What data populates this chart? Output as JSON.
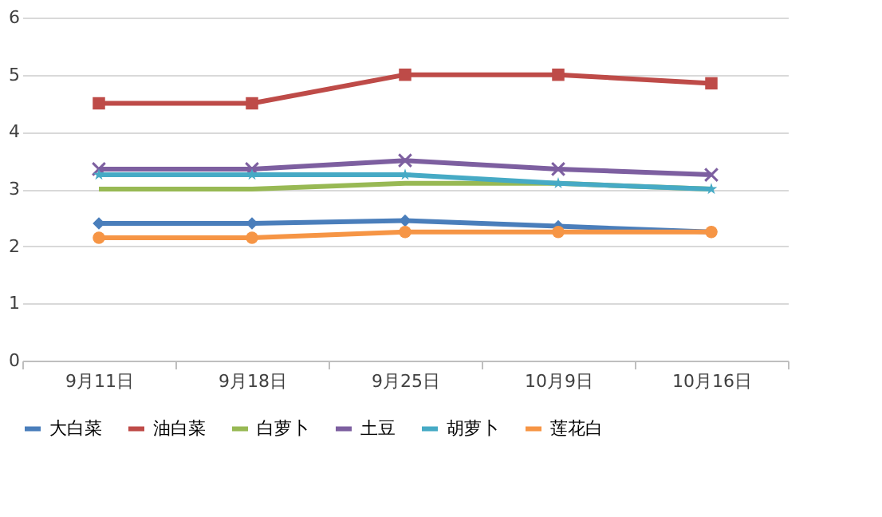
{
  "chart_data": {
    "type": "line",
    "categories": [
      "9月11日",
      "9月18日",
      "9月25日",
      "10月9日",
      "10月16日"
    ],
    "series": [
      {
        "name": "大白菜",
        "color": "#4a7ebb",
        "marker": "diamond",
        "values": [
          2.4,
          2.4,
          2.45,
          2.35,
          2.25
        ]
      },
      {
        "name": "油白菜",
        "color": "#be4b48",
        "marker": "square",
        "values": [
          4.5,
          4.5,
          5,
          5,
          4.85
        ]
      },
      {
        "name": "白萝卜",
        "color": "#98b954",
        "marker": "none",
        "values": [
          3,
          3,
          3.1,
          3.1,
          3.0
        ]
      },
      {
        "name": "土豆",
        "color": "#7d5fa0",
        "marker": "cross",
        "values": [
          3.35,
          3.35,
          3.5,
          3.35,
          3.25
        ]
      },
      {
        "name": "胡萝卜",
        "color": "#46aac5",
        "marker": "star",
        "values": [
          3.25,
          3.25,
          3.25,
          3.1,
          3.0
        ]
      },
      {
        "name": "莲花白",
        "color": "#f69545",
        "marker": "circle",
        "values": [
          2.15,
          2.15,
          2.25,
          2.25,
          2.25
        ]
      }
    ],
    "ylim": [
      0,
      6
    ],
    "yticks": [
      0,
      1,
      2,
      3,
      4,
      5,
      6
    ],
    "grid": "y",
    "legend": "bottom",
    "line_style": "solid"
  }
}
